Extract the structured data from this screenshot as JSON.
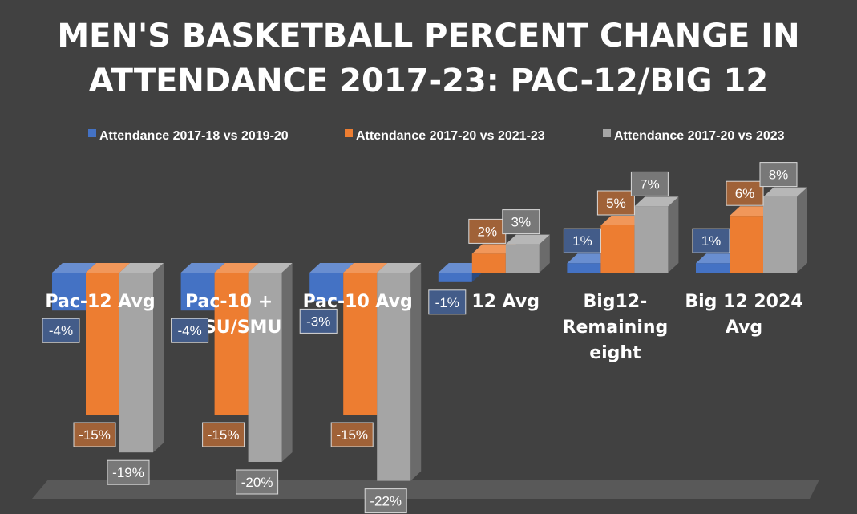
{
  "chart_data": {
    "type": "bar",
    "title_lines": [
      "MEN'S BASKETBALL PERCENT CHANGE IN",
      "ATTENDANCE 2017-23: PAC-12/BIG 12"
    ],
    "categories": [
      [
        "Pac-12 Avg"
      ],
      [
        "Pac-10 +",
        "SDSU/SMU"
      ],
      [
        "Pac-10 Avg"
      ],
      [
        "Big 12 Avg"
      ],
      [
        "Big12-",
        "Remaining",
        "eight"
      ],
      [
        "Big 12 2024",
        "Avg"
      ]
    ],
    "series": [
      {
        "name": "Attendance 2017-18 vs 2019-20",
        "values": [
          -4,
          -4,
          -3,
          -1,
          1,
          1
        ],
        "labels": [
          "-4%",
          "-4%",
          "-3%",
          "-1%",
          "1%",
          "1%"
        ],
        "color": "#4472C4"
      },
      {
        "name": "Attendance 2017-20 vs 2021-23",
        "values": [
          -15,
          -15,
          -15,
          2,
          5,
          6
        ],
        "labels": [
          "-15%",
          "-15%",
          "-15%",
          "2%",
          "5%",
          "6%"
        ],
        "color": "#ED7D31"
      },
      {
        "name": "Attendance 2017-20 vs 2023",
        "values": [
          -19,
          -20,
          -22,
          3,
          7,
          8
        ],
        "labels": [
          "-19%",
          "-20%",
          "-22%",
          "3%",
          "7%",
          "8%"
        ],
        "color": "#A5A5A5"
      }
    ],
    "ylim": [
      -22,
      8
    ],
    "legend_position": "top",
    "grid": false,
    "style": "3d-clustered-column"
  }
}
